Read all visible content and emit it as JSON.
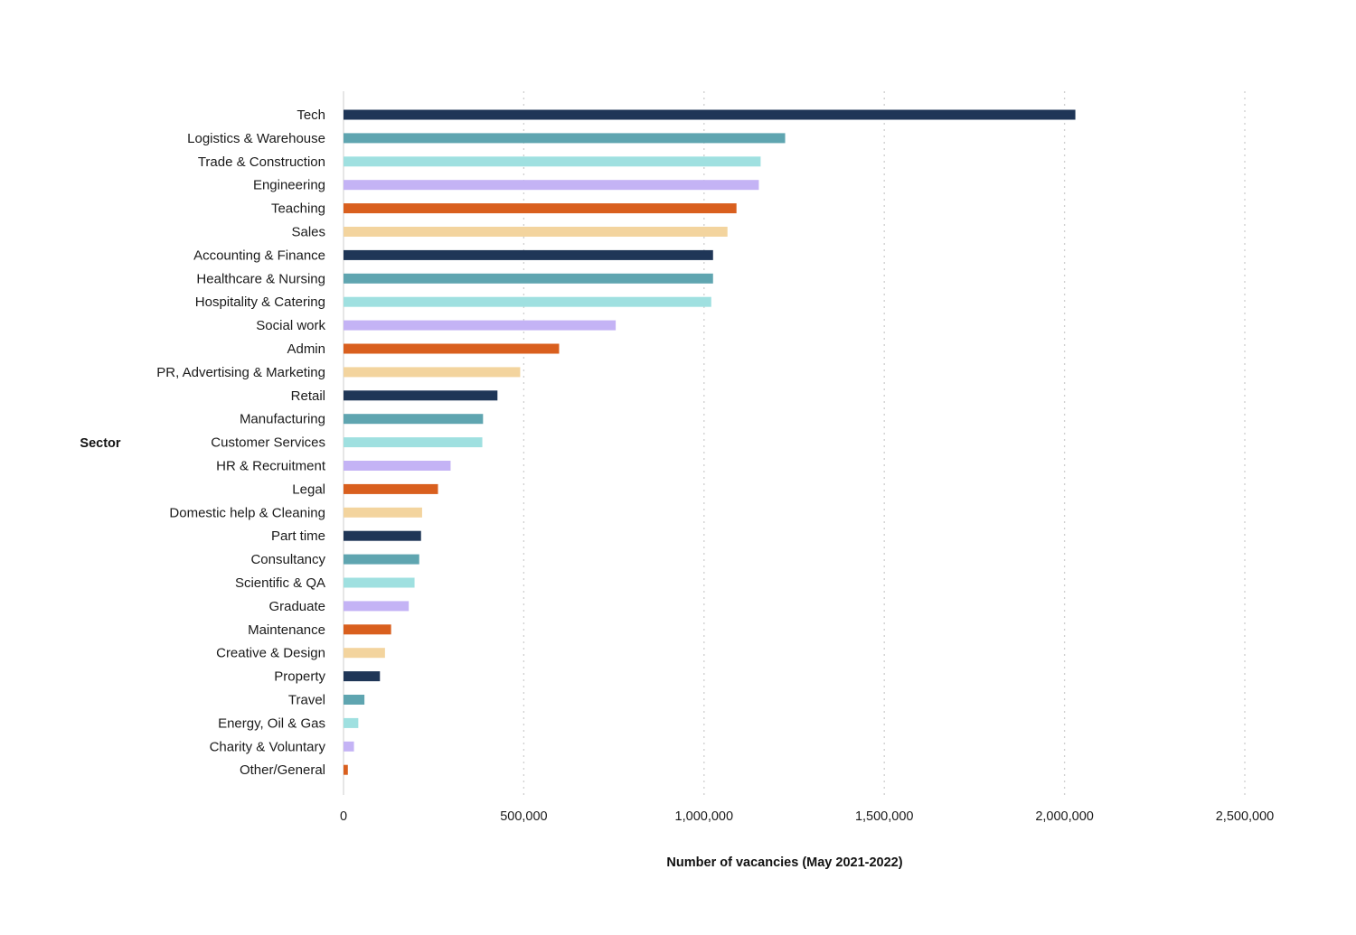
{
  "chart_data": {
    "type": "bar",
    "orientation": "horizontal",
    "title": "",
    "xlabel": "Number of vacancies (May 2021-2022)",
    "ylabel": "Sector",
    "xlim": [
      0,
      2500000
    ],
    "xticks": [
      0,
      500000,
      1000000,
      1500000,
      2000000,
      2500000
    ],
    "xtick_labels": [
      "0",
      "500,000",
      "1,000,000",
      "1,500,000",
      "2,000,000",
      "2,500,000"
    ],
    "grid": "vertical dotted",
    "legend": "none",
    "palette": [
      "#1f3657",
      "#5fa5b0",
      "#9fe0e0",
      "#c4b3f5",
      "#d95f1e",
      "#f3d49e"
    ],
    "categories": [
      "Tech",
      "Logistics & Warehouse",
      "Trade & Construction",
      "Engineering",
      "Teaching",
      "Sales",
      "Accounting & Finance",
      "Healthcare & Nursing",
      "Hospitality & Catering",
      "Social work",
      "Admin",
      "PR, Advertising & Marketing",
      "Retail",
      "Manufacturing",
      "Customer Services",
      "HR & Recruitment",
      "Legal",
      "Domestic help & Cleaning",
      "Part time",
      "Consultancy",
      "Scientific & QA",
      "Graduate",
      "Maintenance",
      "Creative & Design",
      "Property",
      "Travel",
      "Energy, Oil & Gas",
      "Charity & Voluntary",
      "Other/General"
    ],
    "values": [
      2030000,
      1225000,
      1157000,
      1152000,
      1090000,
      1065000,
      1025000,
      1025000,
      1020000,
      755000,
      598000,
      490000,
      427000,
      387000,
      385000,
      297000,
      262000,
      218000,
      215000,
      210000,
      197000,
      181000,
      132000,
      115000,
      101000,
      58000,
      41000,
      29000,
      12000
    ]
  }
}
